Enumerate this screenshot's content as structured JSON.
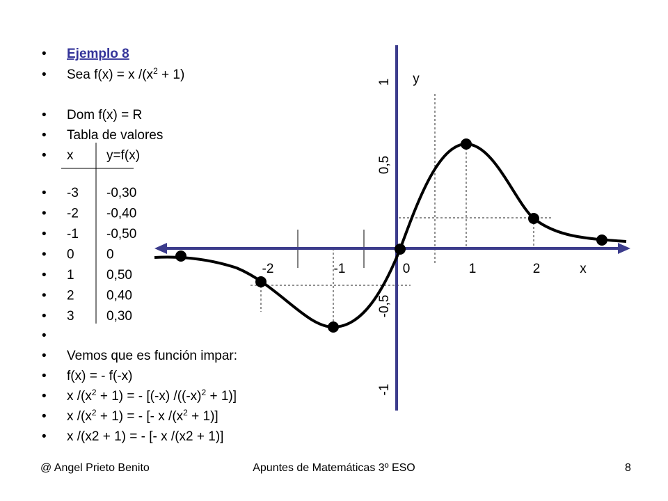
{
  "bullets": [
    [
      "Ejemplo 8"
    ],
    [
      "Sea   f(x) = x /(x",
      {
        "sup": "2"
      },
      " + 1)"
    ],
    [
      "Dom f(x) = R"
    ],
    [
      "Tabla de valores"
    ]
  ],
  "table": {
    "header": [
      "x",
      "y=f(x)"
    ],
    "rows": [
      [
        "-3",
        "-0,30"
      ],
      [
        "-2",
        "-0,40"
      ],
      [
        "-1",
        "-0,50"
      ],
      [
        "0",
        "0"
      ],
      [
        "1",
        "0,50"
      ],
      [
        "2",
        "0,40"
      ],
      [
        "3",
        "0,30"
      ]
    ]
  },
  "conclusion": [
    [
      "Vemos que es función impar:"
    ],
    [
      "f(x) = - f(-x)"
    ],
    [
      "x /(x",
      {
        "sup": "2"
      },
      " + 1) = - [(-x) /((-x)",
      {
        "sup": "2"
      },
      " + 1)]"
    ],
    [
      "x /(x",
      {
        "sup": "2"
      },
      " + 1) = - [- x /(x",
      {
        "sup": "2"
      },
      " + 1)]"
    ],
    [
      "x /(x2 + 1) = - [- x /(x2 + 1)]"
    ]
  ],
  "graph": {
    "x_labels": [
      "-2",
      "-1",
      "0",
      "1",
      "2"
    ],
    "x_axis": "x",
    "y_axis": "y",
    "y_labels": [
      "1",
      "0,5",
      "-0,5",
      "-1"
    ]
  },
  "footer": {
    "author": "@ Angel Prieto Benito",
    "title": "Apuntes de Matemáticas 3º ESO",
    "page": "8"
  }
}
